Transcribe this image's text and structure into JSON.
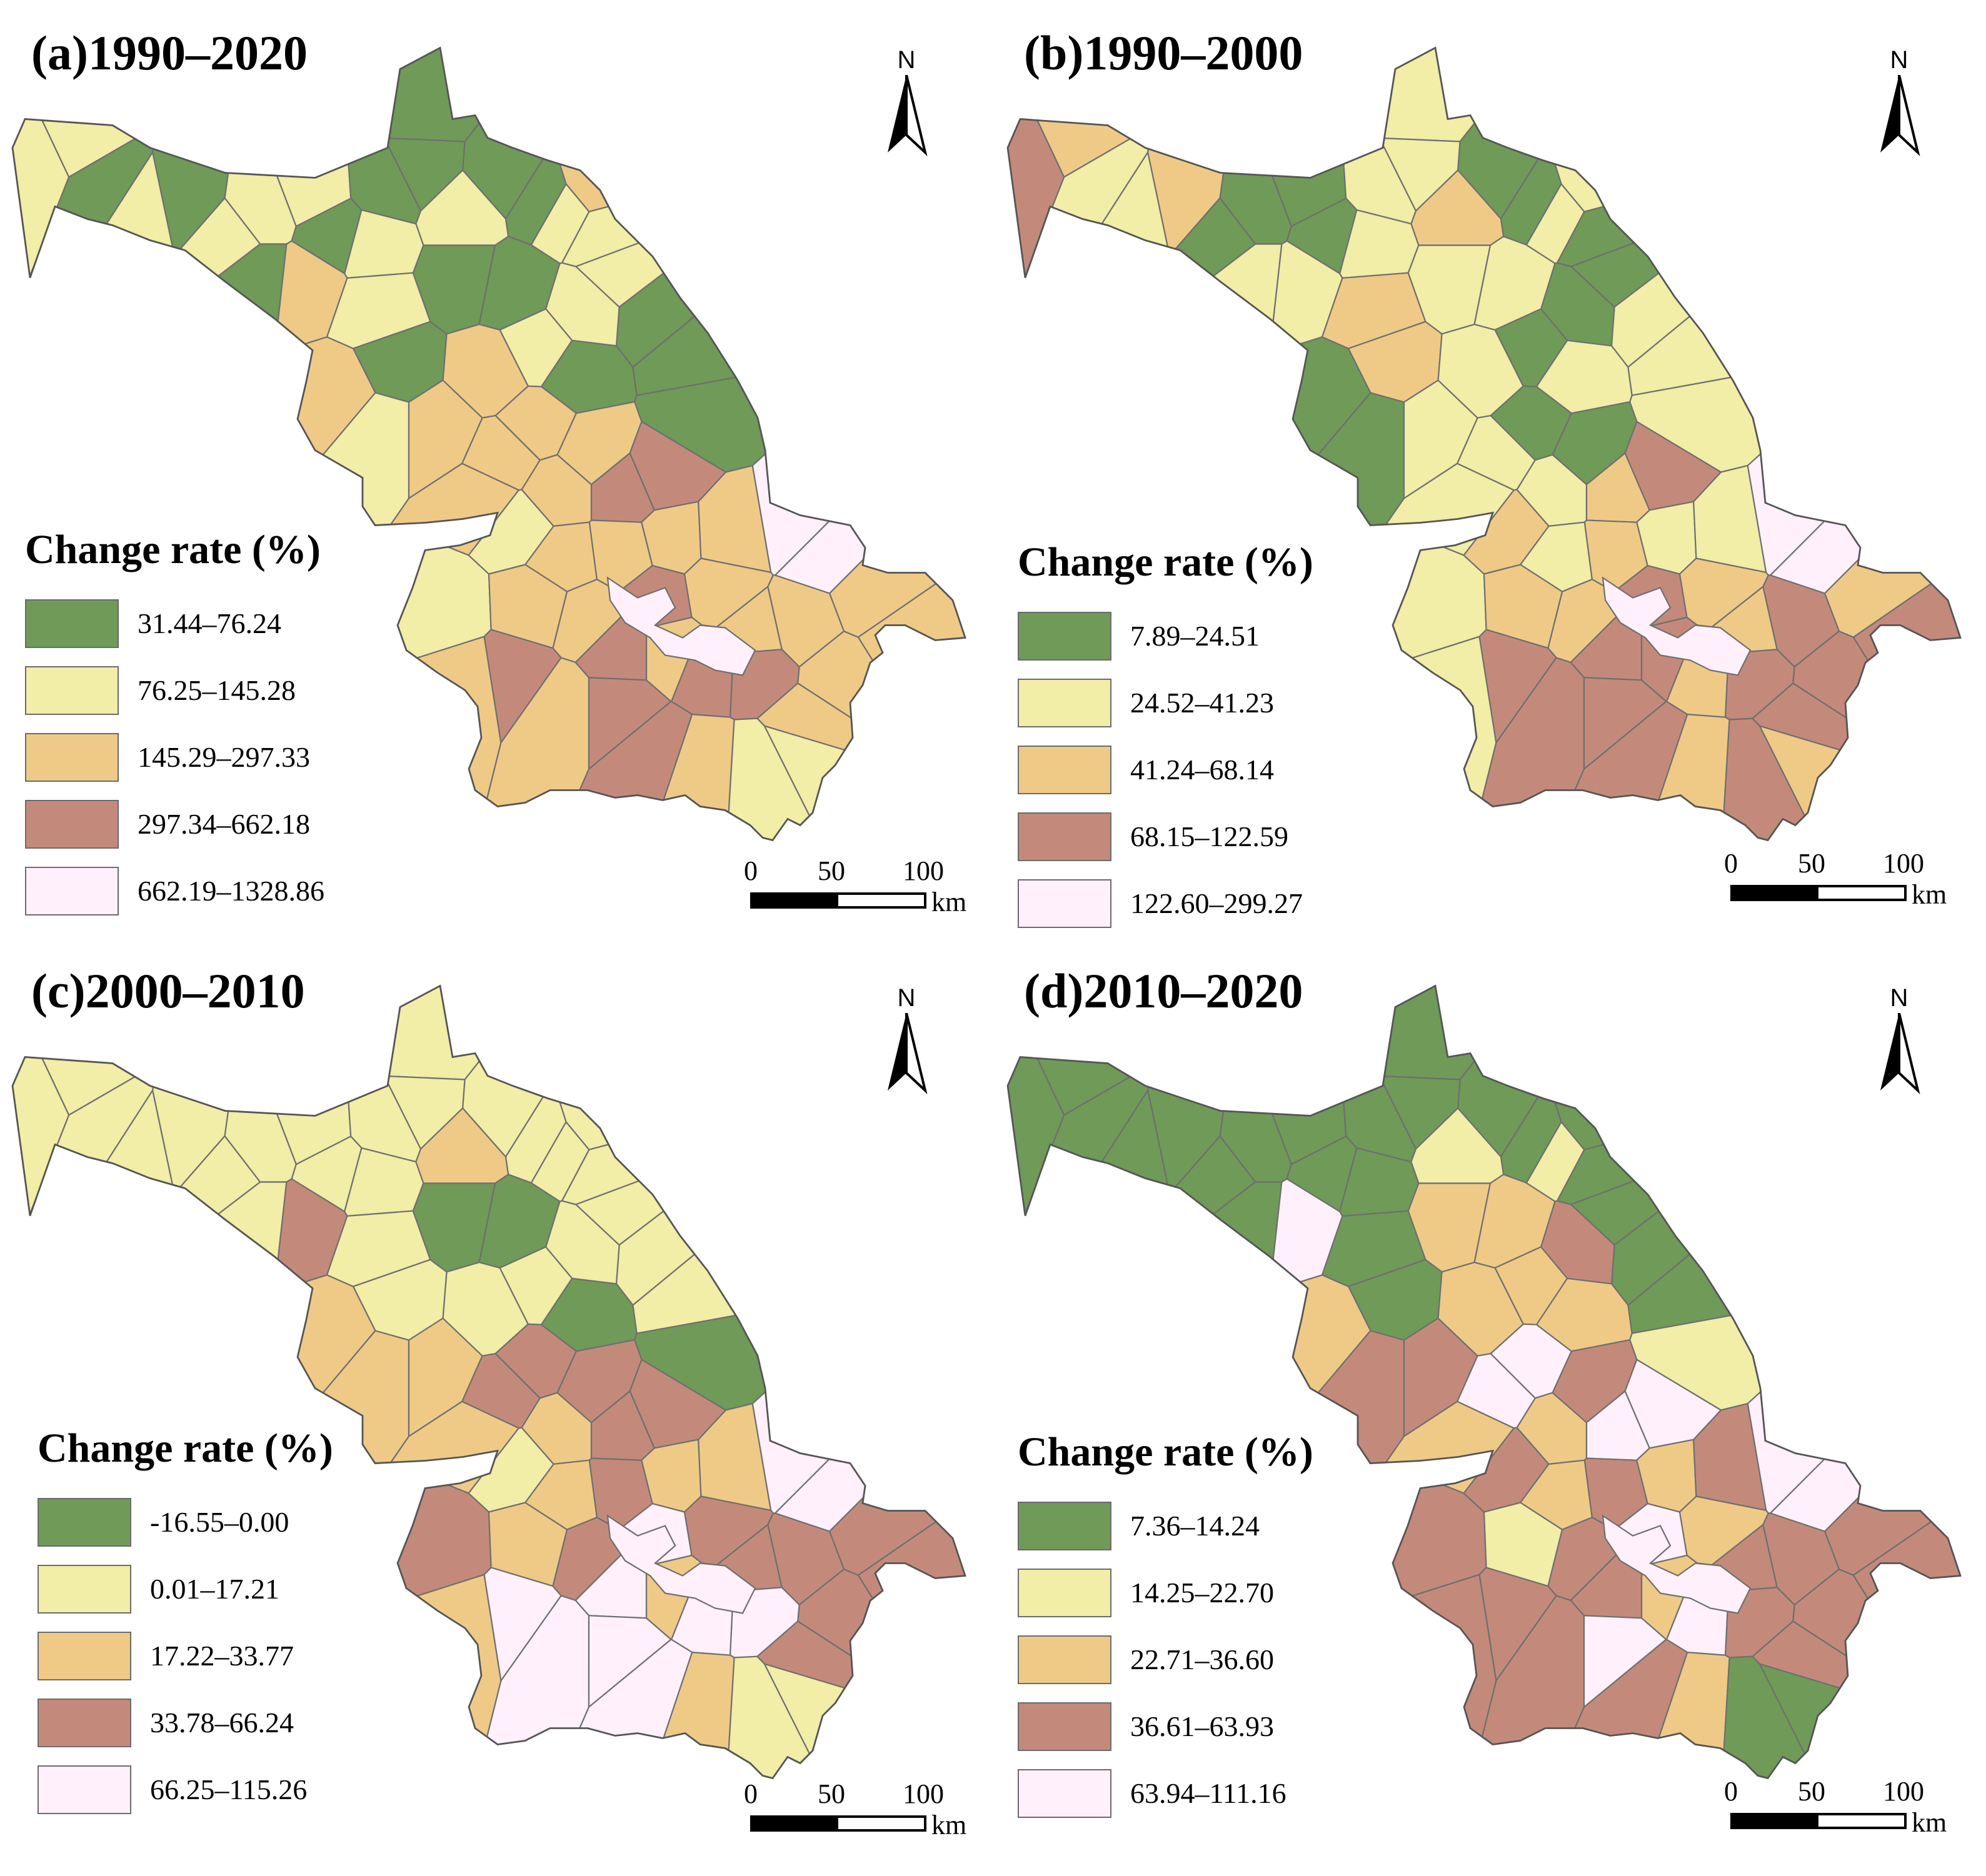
{
  "colors": {
    "c1": "#6f9a58",
    "c2": "#f2eda7",
    "c3": "#efca87",
    "c4": "#c38a7b",
    "c5": "#fff0fb",
    "border": "#6f6f6f"
  },
  "common": {
    "legend_title": "Change rate (%)",
    "north_label": "N",
    "scale_ticks": [
      "0",
      "50",
      "100"
    ],
    "scale_unit": "km"
  },
  "panels": [
    {
      "title": "(a)1990–2020",
      "legend": [
        "31.44–76.24",
        "76.25–145.28",
        "145.29–297.33",
        "297.34–662.18",
        "662.19–1328.86"
      ],
      "region_classes": [
        2,
        2,
        1,
        2,
        1,
        2,
        2,
        1,
        3,
        1,
        2,
        2,
        1,
        1,
        1,
        2,
        1,
        1,
        2,
        1,
        1,
        1,
        2,
        3,
        2,
        2,
        1,
        1,
        1,
        3,
        2,
        3,
        3,
        2,
        1,
        2,
        3,
        3,
        3,
        2,
        3,
        2,
        3,
        3,
        4,
        4,
        3,
        3,
        5,
        5,
        3,
        3,
        3,
        4,
        3,
        3,
        3,
        3,
        3,
        4,
        4,
        3,
        4,
        3,
        3,
        3,
        4,
        3,
        4,
        4,
        3
      ]
    },
    {
      "title": "(b)1990–2000",
      "legend": [
        "7.89–24.51",
        "24.52–41.23",
        "41.24–68.14",
        "68.15–122.59",
        "122.60–299.27"
      ],
      "region_classes": [
        4,
        3,
        2,
        2,
        3,
        1,
        1,
        2,
        2,
        1,
        1,
        2,
        2,
        2,
        2,
        3,
        1,
        1,
        3,
        3,
        2,
        2,
        2,
        2,
        1,
        1,
        2,
        2,
        2,
        1,
        1,
        2,
        2,
        1,
        2,
        1,
        1,
        2,
        2,
        2,
        2,
        3,
        2,
        1,
        3,
        4,
        2,
        2,
        5,
        5,
        3,
        4,
        3,
        4,
        3,
        3,
        4,
        4,
        4,
        4,
        3,
        4,
        4,
        3,
        2,
        3,
        4,
        4,
        4,
        4,
        3
      ]
    },
    {
      "title": "(c)2000–2010",
      "legend": [
        "-16.55–0.00",
        "0.01–17.21",
        "17.22–33.77",
        "33.78–66.24",
        "66.25–115.26"
      ],
      "region_classes": [
        2,
        2,
        2,
        2,
        2,
        2,
        2,
        2,
        4,
        2,
        2,
        2,
        2,
        2,
        2,
        3,
        2,
        2,
        2,
        2,
        1,
        1,
        2,
        2,
        2,
        2,
        2,
        2,
        1,
        3,
        3,
        3,
        2,
        2,
        1,
        2,
        4,
        4,
        3,
        4,
        3,
        2,
        3,
        4,
        4,
        4,
        3,
        3,
        5,
        5,
        4,
        4,
        4,
        5,
        4,
        4,
        4,
        4,
        4,
        5,
        5,
        3,
        5,
        4,
        3,
        3,
        5,
        5,
        5,
        5,
        3
      ]
    },
    {
      "title": "(d)2010–2020",
      "legend": [
        "7.36–14.24",
        "14.25–22.70",
        "22.71–36.60",
        "36.61–63.93",
        "63.94–111.16"
      ],
      "region_classes": [
        1,
        1,
        1,
        1,
        1,
        1,
        1,
        1,
        5,
        1,
        1,
        1,
        1,
        1,
        1,
        2,
        1,
        1,
        1,
        1,
        3,
        3,
        2,
        1,
        1,
        1,
        1,
        1,
        2,
        3,
        4,
        4,
        3,
        3,
        3,
        4,
        5,
        5,
        3,
        4,
        4,
        4,
        3,
        4,
        5,
        5,
        3,
        4,
        5,
        5,
        4,
        4,
        4,
        5,
        3,
        4,
        4,
        4,
        4,
        4,
        5,
        3,
        4,
        4,
        3,
        2,
        4,
        4,
        5,
        4,
        3
      ]
    }
  ]
}
